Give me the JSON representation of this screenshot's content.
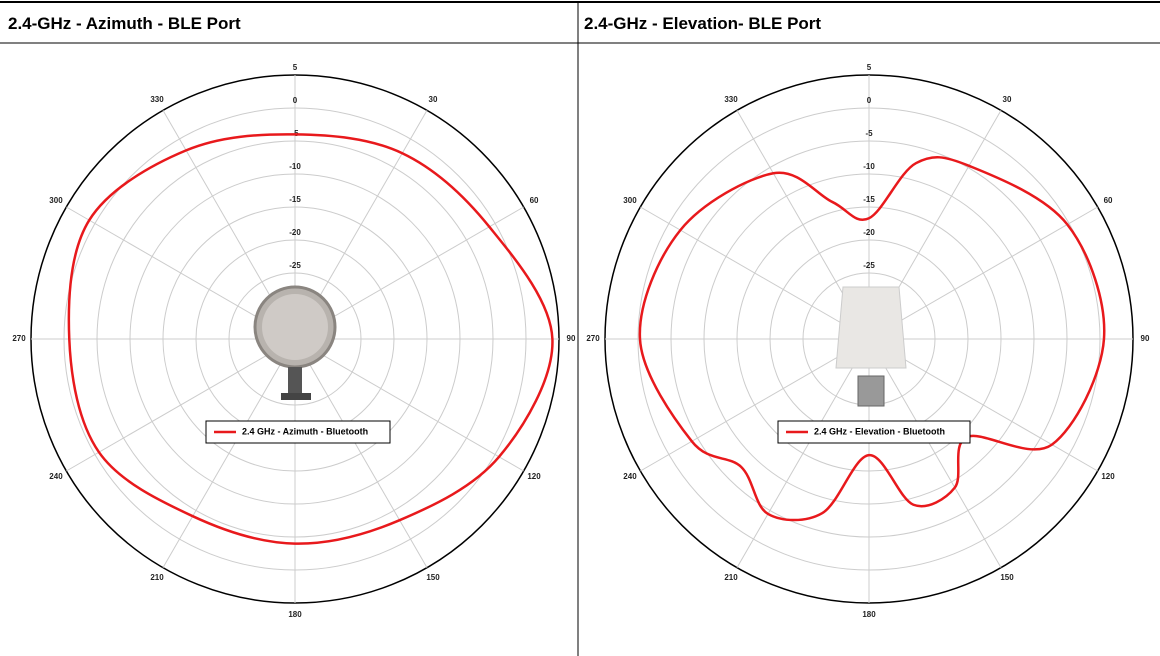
{
  "chart_data": [
    {
      "type": "polar",
      "title": "2.4-GHz - Azimuth - BLE Port",
      "x": [
        0,
        30,
        60,
        90,
        120,
        150,
        180,
        210,
        240,
        270,
        300,
        330
      ],
      "series": [
        {
          "name": "2.4 GHz - Azimuth - Bluetooth",
          "color": "#e8191c",
          "values": [
            -4,
            -2.5,
            -1,
            4,
            0.7,
            -3.3,
            -4,
            -4,
            -0.7,
            -0.8,
            1,
            -2
          ]
        }
      ],
      "rlim": [
        -35,
        5
      ],
      "rticks": [
        -25,
        -20,
        -15,
        -10,
        -5,
        0,
        5
      ],
      "thetaticks": [
        30,
        60,
        90,
        120,
        150,
        180,
        210,
        240,
        270,
        300,
        330
      ],
      "grid": true
    },
    {
      "type": "polar",
      "title": "2.4-GHz - Elevation- BLE Port",
      "x": [
        0,
        15,
        30,
        60,
        90,
        120,
        135,
        150,
        165,
        180,
        195,
        210,
        225,
        240,
        270,
        300,
        330,
        345
      ],
      "series": [
        {
          "name": "2.4 GHz - Elevation - Bluetooth",
          "color": "#e8191c",
          "values": [
            -16.7,
            -7.4,
            -4.7,
            -0.3,
            0.6,
            -3,
            -14,
            -9,
            -9,
            -17.4,
            -7.7,
            -4.4,
            -7.6,
            -4,
            -0.3,
            -2,
            -6,
            -13.5
          ]
        }
      ],
      "rlim": [
        -35,
        5
      ],
      "rticks": [
        -25,
        -20,
        -15,
        -10,
        -5,
        0,
        5
      ],
      "thetaticks": [
        30,
        60,
        90,
        120,
        150,
        180,
        210,
        240,
        270,
        300,
        330
      ],
      "grid": true
    }
  ]
}
